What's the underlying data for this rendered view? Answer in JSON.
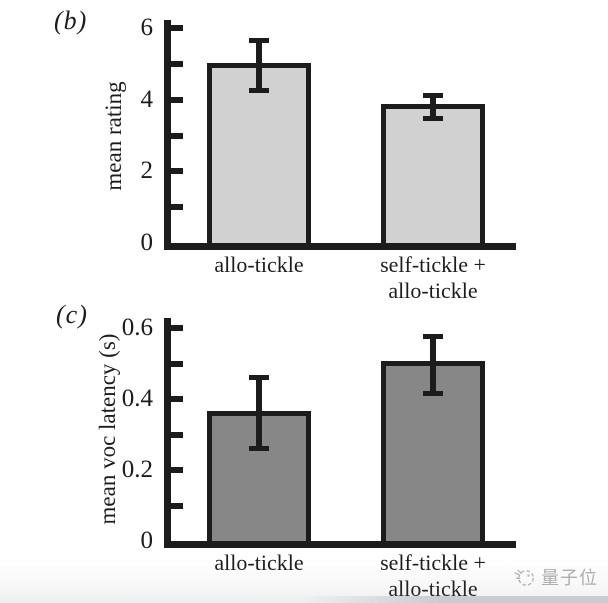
{
  "watermark": {
    "text": "量子位",
    "icon": "sketch-ball-icon",
    "color": "#aeaeae"
  },
  "chart_data": [
    {
      "type": "bar",
      "panel_label": "(b)",
      "ylabel": "mean rating",
      "ylim": [
        0,
        6
      ],
      "ytick_values": [
        0,
        2,
        4,
        6
      ],
      "ytick_labels": [
        "0",
        "2",
        "4",
        "6"
      ],
      "minor_tick_step": 1,
      "categories": [
        "allo-tickle",
        "self-tickle +\nallo-tickle"
      ],
      "values": [
        4.95,
        3.8
      ],
      "error_plus": [
        0.7,
        0.32
      ],
      "error_minus": [
        0.7,
        0.33
      ],
      "bar_fill": "#d1d1d1",
      "bar_border": "#1c1c1c",
      "grid": "off",
      "legend": "none"
    },
    {
      "type": "bar",
      "panel_label": "(c)",
      "ylabel": "mean voc latency (s)",
      "ylim": [
        0,
        0.6
      ],
      "ytick_values": [
        0,
        0.2,
        0.4,
        0.6
      ],
      "ytick_labels": [
        "0",
        "0.2",
        "0.4",
        "0.6"
      ],
      "minor_tick_step": 0.1,
      "categories": [
        "allo-tickle",
        "self-tickle +\nallo-tickle"
      ],
      "values": [
        0.36,
        0.5
      ],
      "error_plus": [
        0.1,
        0.075
      ],
      "error_minus": [
        0.1,
        0.085
      ],
      "bar_fill": "#878787",
      "bar_border": "#1c1c1c",
      "grid": "off",
      "legend": "none"
    }
  ]
}
